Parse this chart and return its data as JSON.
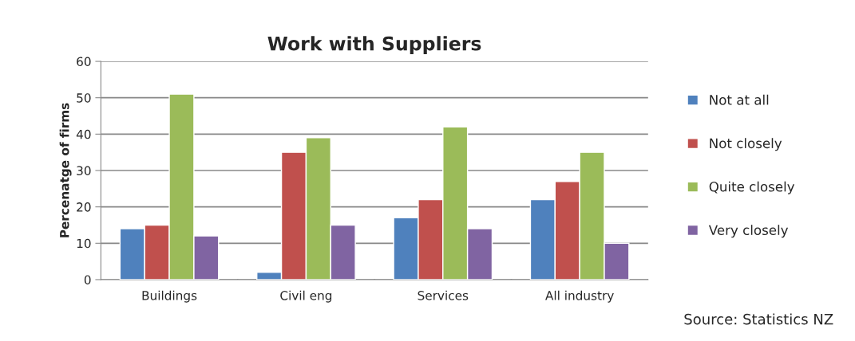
{
  "chart_data": {
    "type": "bar",
    "title": "Work with Suppliers",
    "ylabel": "Percenatge of firms",
    "categories": [
      "Buildings",
      "Civil eng",
      "Services",
      "All industry"
    ],
    "series": [
      {
        "name": "Not at all",
        "color": "#4f81bd",
        "values": [
          14,
          2,
          17,
          22
        ]
      },
      {
        "name": "Not closely",
        "color": "#c0504d",
        "values": [
          15,
          35,
          22,
          27
        ]
      },
      {
        "name": "Quite closely",
        "color": "#9bbb59",
        "values": [
          51,
          39,
          42,
          35
        ]
      },
      {
        "name": "Very closely",
        "color": "#8064a2",
        "values": [
          12,
          15,
          14,
          10
        ]
      }
    ],
    "ylim": [
      0,
      60
    ],
    "yticks": [
      0,
      10,
      20,
      30,
      40,
      50,
      60
    ],
    "grid": "y",
    "legend": "right",
    "annotations": [
      "Source: Statistics NZ"
    ]
  }
}
